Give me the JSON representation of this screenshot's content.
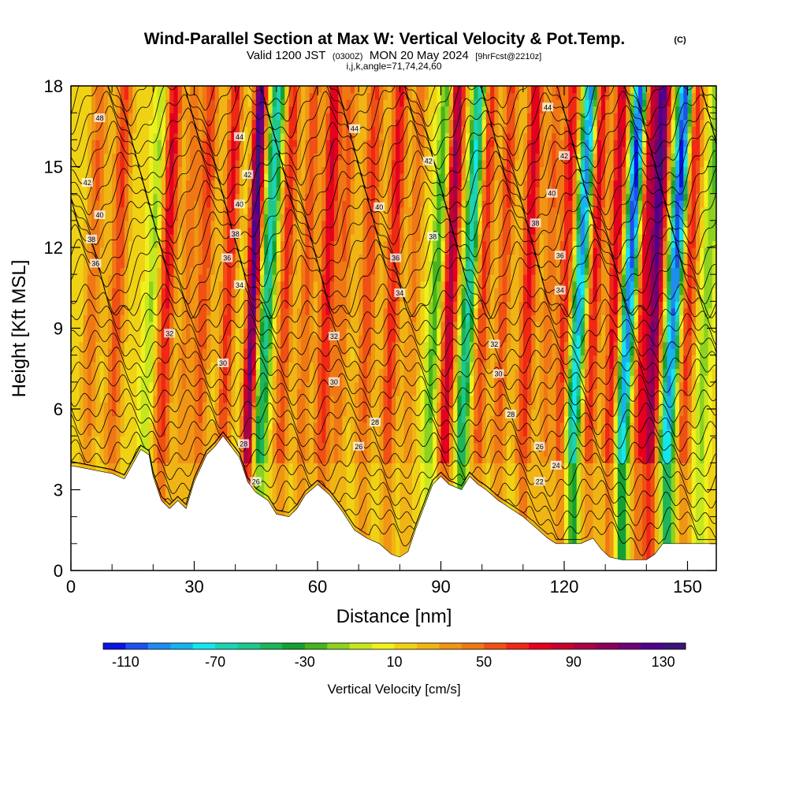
{
  "title": {
    "main": "Wind-Parallel Section at Max W: Vertical Velocity & Pot.Temp.",
    "copyright": "(C)",
    "line2_a": "Valid 1200 JST",
    "line2_b": "(0300Z)",
    "line2_c": "MON 20 May 2024",
    "line2_d": "[9hrFcst@2210z]",
    "line3": "i,j,k,angle=71,74,24,60"
  },
  "chart_data": {
    "type": "heatmap",
    "xlabel": "Distance [nm]",
    "ylabel": "Height [Kft MSL]",
    "xlim": [
      0,
      157
    ],
    "ylim": [
      0,
      18
    ],
    "xticks": [
      0,
      30,
      60,
      90,
      120,
      150
    ],
    "yticks": [
      0,
      3,
      6,
      9,
      12,
      15,
      18
    ],
    "colorbar": {
      "title": "Vertical Velocity [cm/s]",
      "range": [
        -120,
        140
      ],
      "step": 10,
      "tick_labels": [
        "-110",
        "-70",
        "-30",
        "10",
        "50",
        "90",
        "130"
      ],
      "tick_values": [
        -110,
        -70,
        -30,
        10,
        50,
        90,
        130
      ],
      "colors": [
        "#0a14e6",
        "#1e50f0",
        "#1e8cf0",
        "#14b4f0",
        "#14e6f0",
        "#1ed2b4",
        "#1ec88c",
        "#1eb45a",
        "#14a032",
        "#46b41e",
        "#8cd21e",
        "#c8e61e",
        "#f0f01e",
        "#f0d214",
        "#f0b414",
        "#f09614",
        "#f07814",
        "#f05014",
        "#f02814",
        "#e6001e",
        "#c8002d",
        "#aa0046",
        "#8c005a",
        "#6e0078",
        "#50008c",
        "#3c1478"
      ]
    },
    "terrain_height_kft": [
      [
        0,
        3.9
      ],
      [
        10,
        3.6
      ],
      [
        13,
        3.4
      ],
      [
        17,
        4.5
      ],
      [
        19,
        4.3
      ],
      [
        20,
        3.5
      ],
      [
        22,
        2.6
      ],
      [
        24,
        2.3
      ],
      [
        26,
        2.6
      ],
      [
        28,
        2.3
      ],
      [
        30,
        3.3
      ],
      [
        33,
        4.3
      ],
      [
        35,
        4.6
      ],
      [
        37,
        5.0
      ],
      [
        39,
        4.6
      ],
      [
        41,
        4.2
      ],
      [
        43,
        3.3
      ],
      [
        45,
        2.9
      ],
      [
        48,
        2.6
      ],
      [
        50,
        2.1
      ],
      [
        53,
        2.0
      ],
      [
        55,
        2.3
      ],
      [
        57,
        2.8
      ],
      [
        60,
        3.2
      ],
      [
        63,
        2.8
      ],
      [
        66,
        2.2
      ],
      [
        69,
        1.5
      ],
      [
        72,
        1.2
      ],
      [
        75,
        1.0
      ],
      [
        78,
        0.6
      ],
      [
        80,
        0.5
      ],
      [
        82,
        0.7
      ],
      [
        84,
        1.6
      ],
      [
        86,
        2.4
      ],
      [
        88,
        3.2
      ],
      [
        90,
        3.5
      ],
      [
        92,
        3.2
      ],
      [
        95,
        3.0
      ],
      [
        97,
        3.5
      ],
      [
        99,
        3.2
      ],
      [
        101,
        3.0
      ],
      [
        104,
        2.6
      ],
      [
        107,
        2.3
      ],
      [
        110,
        2.0
      ],
      [
        113,
        1.6
      ],
      [
        116,
        1.2
      ],
      [
        118,
        1.0
      ],
      [
        121,
        1.0
      ],
      [
        124,
        1.0
      ],
      [
        127,
        1.2
      ],
      [
        129,
        0.8
      ],
      [
        131,
        0.5
      ],
      [
        134,
        0.4
      ],
      [
        137,
        0.4
      ],
      [
        140,
        0.4
      ],
      [
        142,
        0.6
      ],
      [
        144,
        1.0
      ],
      [
        148,
        1.0
      ],
      [
        152,
        1.0
      ],
      [
        157,
        1.0
      ]
    ],
    "updraft_bands": [
      {
        "x": 4,
        "amp": 35,
        "width": 2.0
      },
      {
        "x": 10,
        "amp": 45,
        "width": 2.0
      },
      {
        "x": 18,
        "amp": -25,
        "width": 1.6
      },
      {
        "x": 22,
        "amp": 60,
        "width": 2.0
      },
      {
        "x": 27,
        "amp": 30,
        "width": 1.8
      },
      {
        "x": 31,
        "amp": 45,
        "width": 2.0
      },
      {
        "x": 37,
        "amp": 55,
        "width": 1.8
      },
      {
        "x": 43,
        "amp": 110,
        "width": 1.5
      },
      {
        "x": 46,
        "amp": -70,
        "width": 1.7
      },
      {
        "x": 51,
        "amp": 50,
        "width": 1.8
      },
      {
        "x": 56,
        "amp": 40,
        "width": 1.8
      },
      {
        "x": 61,
        "amp": 60,
        "width": 2.0
      },
      {
        "x": 65,
        "amp": 35,
        "width": 1.8
      },
      {
        "x": 71,
        "amp": 45,
        "width": 2.2
      },
      {
        "x": 77,
        "amp": 55,
        "width": 2.0
      },
      {
        "x": 82,
        "amp": 30,
        "width": 1.8
      },
      {
        "x": 87,
        "amp": -40,
        "width": 1.6
      },
      {
        "x": 91,
        "amp": 80,
        "width": 1.8
      },
      {
        "x": 95,
        "amp": -75,
        "width": 1.7
      },
      {
        "x": 99,
        "amp": 50,
        "width": 1.8
      },
      {
        "x": 104,
        "amp": 45,
        "width": 1.8
      },
      {
        "x": 110,
        "amp": 60,
        "width": 2.0
      },
      {
        "x": 115,
        "amp": 35,
        "width": 1.8
      },
      {
        "x": 119,
        "amp": 55,
        "width": 1.8
      },
      {
        "x": 122,
        "amp": -100,
        "width": 1.7
      },
      {
        "x": 126,
        "amp": 60,
        "width": 1.8
      },
      {
        "x": 131,
        "amp": 65,
        "width": 1.8
      },
      {
        "x": 134,
        "amp": -115,
        "width": 1.7
      },
      {
        "x": 138,
        "amp": 60,
        "width": 1.8
      },
      {
        "x": 141,
        "amp": 100,
        "width": 1.8
      },
      {
        "x": 145,
        "amp": -115,
        "width": 1.8
      },
      {
        "x": 149,
        "amp": 55,
        "width": 1.8
      },
      {
        "x": 153,
        "amp": -30,
        "width": 1.6
      }
    ],
    "isentropes_K_offset_labels": [
      {
        "text": "48",
        "x": 7,
        "y": 16.8
      },
      {
        "text": "42",
        "x": 4,
        "y": 14.4
      },
      {
        "text": "40",
        "x": 7,
        "y": 13.2
      },
      {
        "text": "38",
        "x": 5,
        "y": 12.3
      },
      {
        "text": "36",
        "x": 6,
        "y": 11.4
      },
      {
        "text": "44",
        "x": 41,
        "y": 16.1
      },
      {
        "text": "42",
        "x": 43,
        "y": 14.7
      },
      {
        "text": "40",
        "x": 41,
        "y": 13.6
      },
      {
        "text": "38",
        "x": 40,
        "y": 12.5
      },
      {
        "text": "36",
        "x": 38,
        "y": 11.6
      },
      {
        "text": "34",
        "x": 41,
        "y": 10.6
      },
      {
        "text": "32",
        "x": 24,
        "y": 8.8
      },
      {
        "text": "30",
        "x": 37,
        "y": 7.7
      },
      {
        "text": "28",
        "x": 42,
        "y": 4.7
      },
      {
        "text": "26",
        "x": 45,
        "y": 3.3
      },
      {
        "text": "44",
        "x": 69,
        "y": 16.4
      },
      {
        "text": "40",
        "x": 75,
        "y": 13.5
      },
      {
        "text": "36",
        "x": 79,
        "y": 11.6
      },
      {
        "text": "34",
        "x": 80,
        "y": 10.3
      },
      {
        "text": "32",
        "x": 64,
        "y": 8.7
      },
      {
        "text": "30",
        "x": 64,
        "y": 7.0
      },
      {
        "text": "28",
        "x": 74,
        "y": 5.5
      },
      {
        "text": "26",
        "x": 70,
        "y": 4.6
      },
      {
        "text": "42",
        "x": 87,
        "y": 15.2
      },
      {
        "text": "38",
        "x": 88,
        "y": 12.4
      },
      {
        "text": "44",
        "x": 116,
        "y": 17.2
      },
      {
        "text": "42",
        "x": 120,
        "y": 15.4
      },
      {
        "text": "40",
        "x": 117,
        "y": 14.0
      },
      {
        "text": "38",
        "x": 113,
        "y": 12.9
      },
      {
        "text": "36",
        "x": 119,
        "y": 11.7
      },
      {
        "text": "34",
        "x": 119,
        "y": 10.4
      },
      {
        "text": "32",
        "x": 103,
        "y": 8.4
      },
      {
        "text": "30",
        "x": 104,
        "y": 7.3
      },
      {
        "text": "28",
        "x": 107,
        "y": 5.8
      },
      {
        "text": "26",
        "x": 114,
        "y": 4.6
      },
      {
        "text": "24",
        "x": 118,
        "y": 3.9
      },
      {
        "text": "22",
        "x": 114,
        "y": 3.3
      }
    ]
  }
}
